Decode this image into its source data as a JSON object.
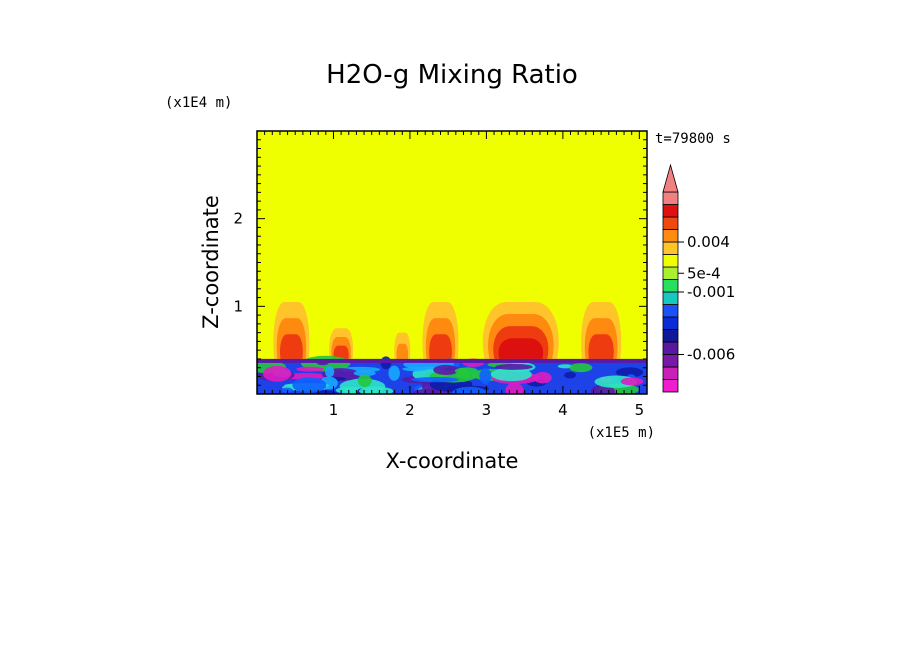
{
  "chart_data": {
    "type": "heatmap",
    "title": "H2O-g Mixing Ratio",
    "xlabel": "X-coordinate",
    "ylabel": "Z-coordinate",
    "x_scale_label": "(x1E5 m)",
    "y_scale_label": "(x1E4 m)",
    "time_label": "t=79800 s",
    "xlim": [
      0,
      5.1
    ],
    "ylim": [
      0,
      3
    ],
    "x_ticks": [
      1,
      2,
      3,
      4,
      5
    ],
    "y_ticks": [
      1,
      2
    ],
    "x_tick_labels": [
      "1",
      "2",
      "3",
      "4",
      "5"
    ],
    "y_tick_labels": [
      "1",
      "2"
    ],
    "background_color": "#f0ff00",
    "boundary_layer": {
      "top": 0.4,
      "base_color": "#1c42e8",
      "band_colors": [
        "#5a1aa8",
        "#0e1ca8",
        "#1060ff",
        "#19a8ff",
        "#2ee6c8",
        "#24c83c",
        "#e01cc0"
      ]
    },
    "plumes": [
      {
        "x": 0.45,
        "top": 1.05,
        "width": 0.45,
        "colors": [
          "#ffc42a",
          "#ff8a10",
          "#ee3c10"
        ]
      },
      {
        "x": 1.1,
        "top": 0.75,
        "width": 0.3,
        "colors": [
          "#ffc42a",
          "#ff8a10",
          "#ee3c10"
        ]
      },
      {
        "x": 1.9,
        "top": 0.7,
        "width": 0.2,
        "colors": [
          "#ffc42a",
          "#ff8a10"
        ]
      },
      {
        "x": 2.4,
        "top": 1.05,
        "width": 0.45,
        "colors": [
          "#ffc42a",
          "#ff8a10",
          "#ee3c10"
        ]
      },
      {
        "x": 3.45,
        "top": 1.05,
        "width": 0.95,
        "colors": [
          "#ffc42a",
          "#ff8a10",
          "#ee3c10",
          "#dd1010"
        ]
      },
      {
        "x": 4.5,
        "top": 1.05,
        "width": 0.5,
        "colors": [
          "#ffc42a",
          "#ff8a10",
          "#ee3c10"
        ]
      }
    ],
    "colorbar": {
      "colors": [
        "#f01cd0",
        "#c820b8",
        "#7818a8",
        "#5818a0",
        "#0e1898",
        "#0a2cd8",
        "#1a52f8",
        "#18c8c0",
        "#28e060",
        "#a8f030",
        "#f0ff00",
        "#ffc428",
        "#ff8c10",
        "#ee4a10",
        "#e01010",
        "#f28080"
      ],
      "extend_max": true,
      "extend_color": "#f28080",
      "labels": [
        {
          "value": "0.004",
          "level": 12
        },
        {
          "value": "5e-4",
          "level": 9.5
        },
        {
          "value": "-0.001",
          "level": 8
        },
        {
          "value": "-0.006",
          "level": 3
        }
      ]
    }
  }
}
